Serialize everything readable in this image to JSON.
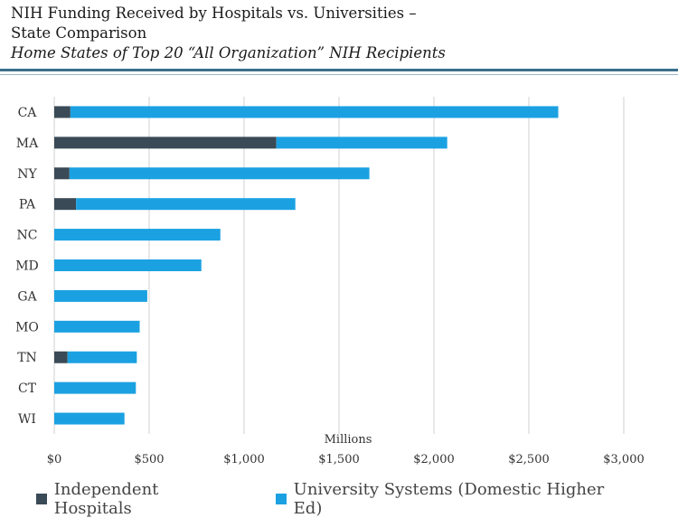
{
  "header": {
    "title_line1": "NIH Funding  Received by Hospitals vs. Universities  –",
    "title_line2": "State Comparison",
    "subtitle": "Home States of Top 20 “All Organization” NIH Recipients"
  },
  "colors": {
    "hospitals": "#3a4a56",
    "universities": "#1ba1e2",
    "grid": "#d0d0d0",
    "rule": "#3b6f8a"
  },
  "chart_data": {
    "type": "bar",
    "orientation": "horizontal",
    "stacked": true,
    "categories": [
      "CA",
      "MA",
      "NY",
      "PA",
      "NC",
      "MD",
      "GA",
      "MO",
      "TN",
      "CT",
      "WI"
    ],
    "series": [
      {
        "name": "Independent Hospitals",
        "values": [
          85,
          1170,
          80,
          115,
          0,
          0,
          0,
          0,
          70,
          0,
          0
        ]
      },
      {
        "name": "University Systems (Domestic Higher Ed)",
        "values": [
          2570,
          900,
          1580,
          1155,
          875,
          775,
          490,
          450,
          365,
          430,
          370
        ]
      }
    ],
    "xlabel": "Millions",
    "xlim": [
      0,
      3000
    ],
    "xticks": [
      0,
      500,
      1000,
      1500,
      2000,
      2500,
      3000
    ],
    "xtick_labels": [
      "$0",
      "$500",
      "$1,000",
      "$1,500",
      "$2,000",
      "$2,500",
      "$3,000"
    ],
    "grid": "vertical",
    "legend_position": "bottom"
  }
}
